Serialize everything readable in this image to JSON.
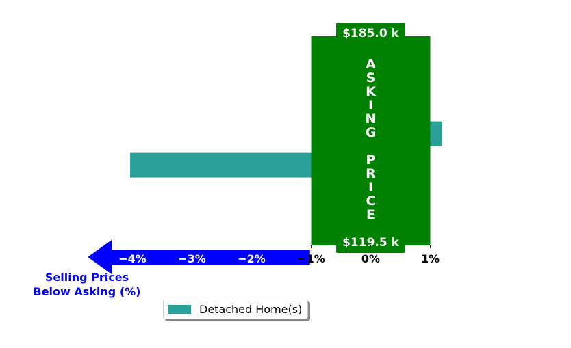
{
  "chart_data": {
    "type": "bar",
    "orientation": "horizontal",
    "x_ticks": [
      -4,
      -3,
      -2,
      -1,
      0,
      1
    ],
    "x_tick_labels": [
      "−4%",
      "−3%",
      "−2%",
      "−1%",
      "0%",
      "1%"
    ],
    "xlim": [
      -4.5,
      1.2
    ],
    "series": [
      {
        "name": "Detached Home(s)",
        "color": "#2aa198",
        "bars": [
          {
            "y": 0.2,
            "value": 1.2
          },
          {
            "y": -0.3,
            "value": -4.04
          }
        ]
      }
    ],
    "asking_price_band": {
      "x_range": [
        -1,
        1
      ],
      "color": "#008000",
      "label": "ASKING PRICE",
      "top_price": "$185.0 k",
      "bottom_price": "$119.5 k"
    },
    "below_arrow": {
      "color": "#0000ff",
      "label_line1": "Selling Prices",
      "label_line2": "Below Asking (%)"
    },
    "legend_placement": "bottom-center",
    "grid": false
  }
}
